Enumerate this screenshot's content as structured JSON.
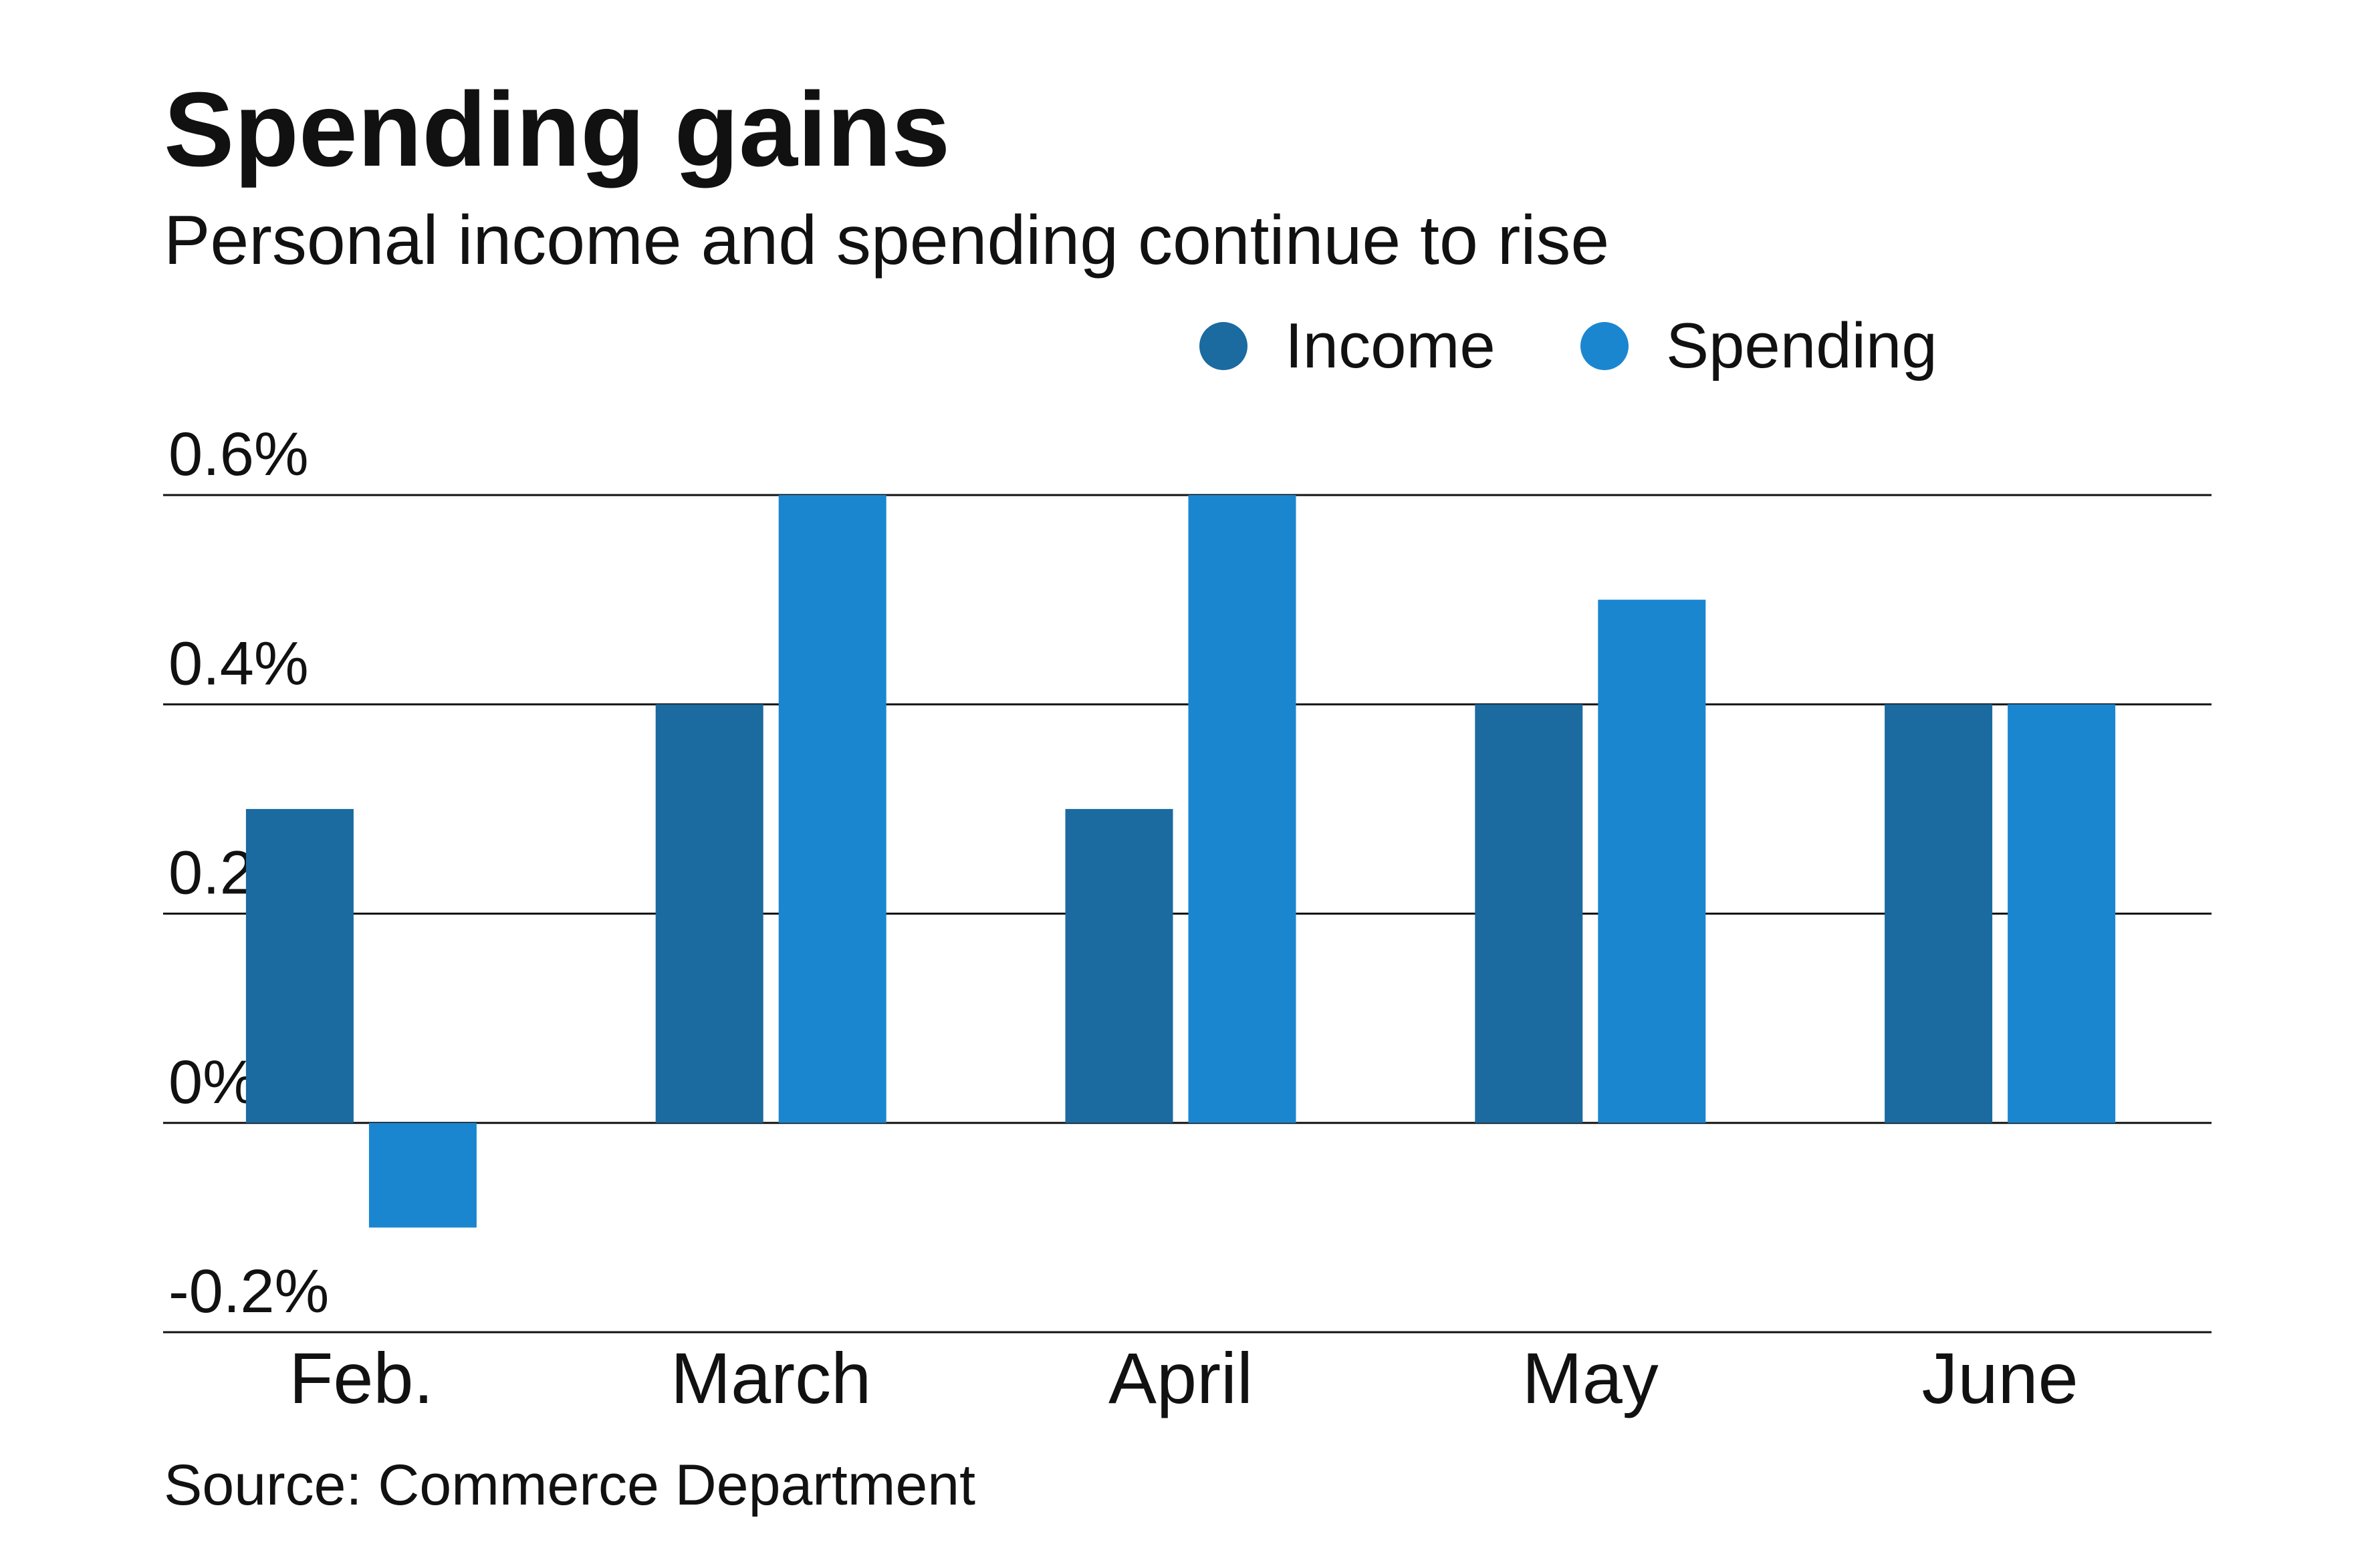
{
  "chart_data": {
    "type": "bar",
    "title": "Spending gains",
    "subtitle": "Personal income and spending continue to rise",
    "categories": [
      "Feb.",
      "March",
      "April",
      "May",
      "June"
    ],
    "series": [
      {
        "name": "Income",
        "color": "#1b6aa0",
        "values": [
          0.3,
          0.4,
          0.3,
          0.4,
          0.4
        ]
      },
      {
        "name": "Spending",
        "color": "#1b86d0",
        "values": [
          -0.1,
          0.6,
          0.6,
          0.5,
          0.4
        ]
      }
    ],
    "yticks": [
      0.6,
      0.4,
      0.2,
      0,
      -0.2
    ],
    "ytick_labels": [
      "0.6%",
      "0.4%",
      "0.2%",
      "0%",
      "-0.2%"
    ],
    "ylim": [
      -0.2,
      0.6
    ],
    "xlabel": "",
    "ylabel": "",
    "grid": true,
    "legend_position": "top-right",
    "source": "Source: Commerce Department"
  }
}
